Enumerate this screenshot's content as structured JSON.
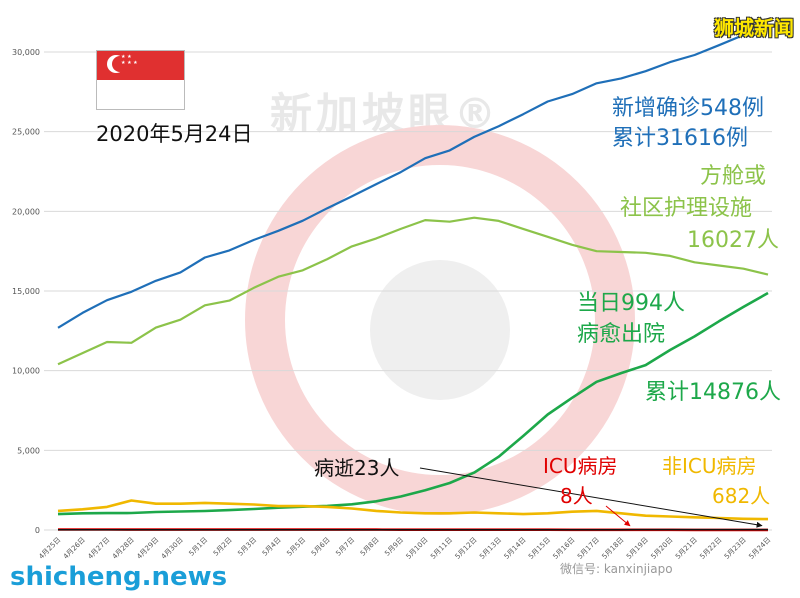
{
  "date_label": "2020年5月24日",
  "brand": "狮城新闻",
  "site": "shicheng.news",
  "watermark": "新加坡眼®",
  "wechat": "微信号: kanxinjiapo",
  "annotations": {
    "confirmed": [
      "新增确诊548例",
      "累计31616例"
    ],
    "community": [
      "方舱或",
      "社区护理设施",
      "16027人"
    ],
    "recovered": [
      "当日994人",
      "病愈出院"
    ],
    "recovered_total": "累计14876人",
    "deaths": "病逝23人",
    "icu": [
      "ICU病房",
      "8人"
    ],
    "non_icu": [
      "非ICU病房",
      "682人"
    ]
  },
  "colors": {
    "confirmed": "#1f6fb8",
    "community": "#8cc34a",
    "recovered": "#1da84a",
    "non_icu": "#f0b800",
    "icu": "#e00000",
    "deaths": "#111111"
  },
  "chart_data": {
    "type": "line",
    "ylim": [
      0,
      30000
    ],
    "yticks": [
      "0",
      "5,000",
      "10,000",
      "15,000",
      "20,000",
      "25,000",
      "30,000"
    ],
    "categories": [
      "4月25日",
      "4月26日",
      "4月27日",
      "4月28日",
      "4月29日",
      "4月30日",
      "5月1日",
      "5月2日",
      "5月3日",
      "5月4日",
      "5月5日",
      "5月6日",
      "5月7日",
      "5月8日",
      "5月9日",
      "5月10日",
      "5月11日",
      "5月12日",
      "5月13日",
      "5月14日",
      "5月15日",
      "5月16日",
      "5月17日",
      "5月18日",
      "5月19日",
      "5月20日",
      "5月21日",
      "5月22日",
      "5月23日",
      "5月24日"
    ],
    "series": [
      {
        "key": "confirmed",
        "values": [
          12693,
          13624,
          14423,
          14951,
          15641,
          16169,
          17101,
          17548,
          18205,
          18778,
          19410,
          20198,
          20939,
          21707,
          22460,
          23336,
          23822,
          24671,
          25346,
          26098,
          26891,
          27356,
          28038,
          28343,
          28794,
          29364,
          29812,
          30426,
          31068,
          31616
        ]
      },
      {
        "key": "community",
        "values": [
          10400,
          11100,
          11800,
          11750,
          12700,
          13200,
          14100,
          14400,
          15200,
          15900,
          16300,
          17000,
          17800,
          18300,
          18900,
          19450,
          19350,
          19600,
          19400,
          18900,
          18400,
          17900,
          17500,
          17450,
          17400,
          17200,
          16800,
          16600,
          16400,
          16027
        ]
      },
      {
        "key": "recovered",
        "values": [
          1000,
          1050,
          1060,
          1070,
          1130,
          1160,
          1190,
          1250,
          1320,
          1400,
          1460,
          1510,
          1610,
          1800,
          2100,
          2500,
          2950,
          3600,
          4600,
          5900,
          7250,
          8300,
          9300,
          9850,
          10350,
          11300,
          12150,
          13100,
          14000,
          14876
        ]
      },
      {
        "key": "non_icu",
        "values": [
          1200,
          1300,
          1450,
          1850,
          1650,
          1650,
          1700,
          1650,
          1600,
          1500,
          1500,
          1450,
          1350,
          1200,
          1100,
          1050,
          1050,
          1100,
          1050,
          1000,
          1050,
          1150,
          1200,
          1050,
          900,
          850,
          800,
          750,
          700,
          682
        ]
      },
      {
        "key": "icu",
        "values": [
          30,
          30,
          30,
          25,
          25,
          25,
          25,
          24,
          24,
          24,
          23,
          22,
          22,
          22,
          21,
          20,
          20,
          20,
          19,
          18,
          17,
          15,
          14,
          13,
          12,
          10,
          9,
          9,
          8,
          8
        ]
      },
      {
        "key": "deaths",
        "values": [
          14,
          14,
          14,
          14,
          14,
          15,
          16,
          17,
          18,
          18,
          18,
          18,
          18,
          18,
          20,
          20,
          20,
          20,
          20,
          20,
          20,
          21,
          21,
          21,
          22,
          22,
          23,
          23,
          23,
          23
        ]
      }
    ]
  }
}
